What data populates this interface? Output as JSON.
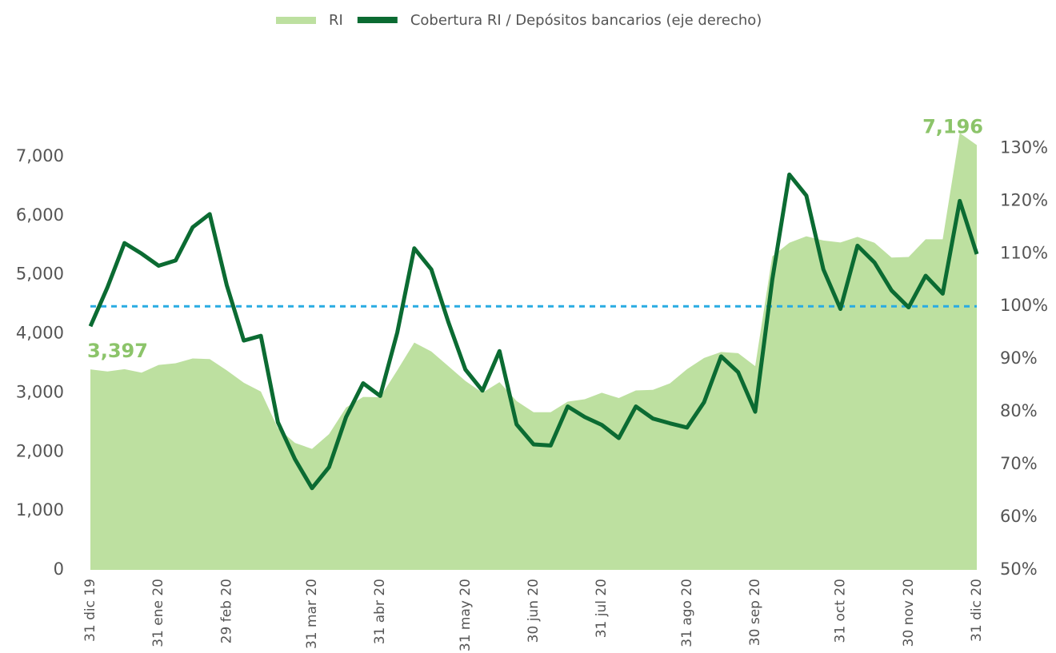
{
  "chart_data": {
    "type": "area-line",
    "categories": [
      "31 dic 19",
      null,
      null,
      null,
      "31 ene 20",
      null,
      null,
      null,
      "29 feb 20",
      null,
      null,
      null,
      null,
      "31 mar 20",
      null,
      null,
      null,
      "31 abr 20",
      null,
      null,
      null,
      null,
      "31 may 20",
      null,
      null,
      null,
      "30 jun 20",
      null,
      null,
      null,
      "31 jul 20",
      null,
      null,
      null,
      null,
      "31 ago 20",
      null,
      null,
      null,
      "30 sep 20",
      null,
      null,
      null,
      null,
      "31 oct 20",
      null,
      null,
      null,
      "30 nov 20",
      null,
      null,
      null,
      "31 dic 20"
    ],
    "series": [
      {
        "name": "RI",
        "type": "area",
        "color": "#bde0a0",
        "values": [
          3397,
          3360,
          3400,
          3340,
          3470,
          3500,
          3580,
          3570,
          3380,
          3170,
          3020,
          2400,
          2150,
          2050,
          2300,
          2750,
          2930,
          2925,
          3380,
          3850,
          3700,
          3450,
          3200,
          3000,
          3180,
          2860,
          2670,
          2670,
          2850,
          2890,
          3000,
          2910,
          3040,
          3050,
          3160,
          3400,
          3590,
          3690,
          3670,
          3450,
          5310,
          5540,
          5650,
          5580,
          5545,
          5640,
          5540,
          5290,
          5300,
          5600,
          5600,
          7400,
          7196
        ],
        "value_labels": [
          "3,397",
          null,
          null,
          null,
          null,
          null,
          null,
          null,
          null,
          null,
          null,
          null,
          null,
          null,
          null,
          null,
          null,
          null,
          null,
          null,
          null,
          null,
          null,
          null,
          null,
          null,
          null,
          null,
          null,
          null,
          null,
          null,
          null,
          null,
          null,
          null,
          null,
          null,
          null,
          null,
          null,
          null,
          null,
          null,
          null,
          null,
          null,
          null,
          null,
          null,
          null,
          null,
          "7,196"
        ],
        "label_color": "#8cc46a"
      },
      {
        "name": "Cobertura RI / Depósitos bancarios (eje derecho)",
        "type": "line",
        "axis": "y2",
        "color": "#0b6b32",
        "values": [
          96.2,
          103.6,
          112,
          110,
          107.7,
          108.7,
          115,
          117.5,
          104,
          93.5,
          94.4,
          78,
          71,
          65.5,
          69.5,
          79,
          85.4,
          83,
          95,
          111,
          107,
          97,
          88,
          84,
          91.5,
          77.6,
          73.8,
          73.6,
          81,
          79,
          77.5,
          75,
          81,
          78.7,
          77.8,
          77,
          81.8,
          90.5,
          87.5,
          80,
          105,
          125,
          121,
          107,
          99.5,
          111.5,
          108.3,
          103,
          99.8,
          105.8,
          102.4,
          120,
          109.9
        ]
      }
    ],
    "reference_line": {
      "value": 100,
      "axis": "y2",
      "color": "#29abe2",
      "style": "dashed"
    },
    "ylim": [
      0,
      7500
    ],
    "yticks": [
      0,
      {
        "value": 1000,
        "label": "1,000"
      },
      {
        "value": 2000,
        "label": "2,000"
      },
      {
        "value": 3000,
        "label": "3,000"
      },
      {
        "value": 4000,
        "label": "4,000"
      },
      {
        "value": 5000,
        "label": "5,000"
      },
      {
        "value": 6000,
        "label": "6,000"
      },
      {
        "value": 7000,
        "label": "7,000"
      }
    ],
    "y2lim": [
      50,
      134
    ],
    "y2ticks": [
      {
        "value": 50,
        "label": "50%"
      },
      {
        "value": 60,
        "label": "60%"
      },
      {
        "value": 70,
        "label": "70%"
      },
      {
        "value": 80,
        "label": "80%"
      },
      {
        "value": 90,
        "label": "90%"
      },
      {
        "value": 100,
        "label": "100%"
      },
      {
        "value": 110,
        "label": "110%"
      },
      {
        "value": 120,
        "label": "120%"
      },
      {
        "value": 130,
        "label": "130%"
      }
    ],
    "legend": "top"
  }
}
